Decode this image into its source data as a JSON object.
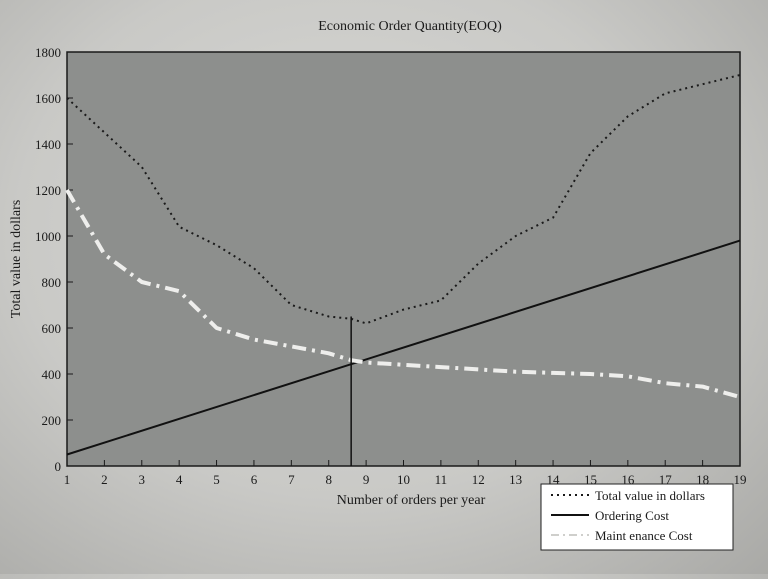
{
  "chart_data": {
    "type": "line",
    "title": "Economic Order Quantity(EOQ)",
    "xlabel": "Number of orders per year",
    "ylabel": "Total value in dollars",
    "xlim": [
      1,
      19
    ],
    "ylim": [
      0,
      1800
    ],
    "xticks": [
      1,
      2,
      3,
      4,
      5,
      6,
      7,
      8,
      9,
      10,
      11,
      12,
      13,
      14,
      15,
      16,
      17,
      18,
      19
    ],
    "yticks": [
      0,
      200,
      400,
      600,
      800,
      1000,
      1200,
      1400,
      1600,
      1800
    ],
    "grid": false,
    "legend_position": "bottom-right",
    "vertical_marker_x": 8.6,
    "series": [
      {
        "name": "Total value in dollars",
        "style": "dotted",
        "color": "#1a1a1a",
        "x": [
          1,
          2,
          3,
          4,
          5,
          6,
          7,
          8,
          8.6,
          9,
          10,
          11,
          12,
          13,
          14,
          15,
          16,
          17,
          18,
          19
        ],
        "y": [
          1600,
          1450,
          1300,
          1040,
          960,
          860,
          700,
          650,
          640,
          620,
          680,
          720,
          880,
          1000,
          1080,
          1360,
          1520,
          1620,
          1660,
          1700
        ]
      },
      {
        "name": "Ordering Cost",
        "style": "solid",
        "color": "#111111",
        "x": [
          1,
          19
        ],
        "y": [
          50,
          980
        ]
      },
      {
        "name": "Maint enance Cost",
        "style": "dash-dot",
        "color": "#eeeeec",
        "x": [
          1,
          2,
          3,
          4,
          5,
          6,
          7,
          8,
          8.6,
          9,
          10,
          11,
          12,
          13,
          14,
          15,
          16,
          17,
          18,
          19
        ],
        "y": [
          1200,
          920,
          800,
          760,
          600,
          550,
          520,
          490,
          460,
          450,
          440,
          430,
          420,
          410,
          405,
          400,
          390,
          360,
          345,
          300
        ]
      }
    ]
  }
}
